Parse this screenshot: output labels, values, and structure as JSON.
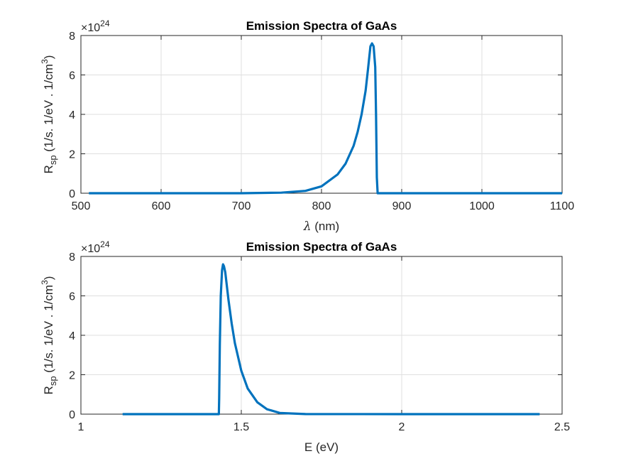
{
  "chart_data": [
    {
      "type": "line",
      "title": "Emission Spectra of GaAs",
      "xlabel": "λ (nm)",
      "xlabel_parts": {
        "symbol": "λ",
        "unit": " (nm)"
      },
      "ylabel": "R_sp (1/s. 1/eV . 1/cm^3)",
      "ylabel_parts": {
        "main": "R",
        "sub": "sp",
        "rest": "  (1/s. 1/eV . 1/cm",
        "sup": "3",
        "close": ")"
      },
      "y_exponent": {
        "base": "×10",
        "power": "24"
      },
      "xlim": [
        500,
        1100
      ],
      "ylim": [
        0,
        8
      ],
      "xticks": [
        500,
        600,
        700,
        800,
        900,
        1000,
        1100
      ],
      "yticks": [
        0,
        2,
        4,
        6,
        8
      ],
      "grid": true,
      "color": "#0072BD",
      "series": [
        {
          "x": [
            510,
            700,
            750,
            780,
            800,
            820,
            830,
            840,
            845,
            850,
            855,
            858,
            861,
            863,
            865,
            867,
            868,
            869,
            870,
            875,
            900,
            1100
          ],
          "y": [
            0,
            0,
            0.03,
            0.12,
            0.35,
            0.95,
            1.5,
            2.4,
            3.1,
            4.0,
            5.2,
            6.3,
            7.45,
            7.6,
            7.45,
            6.4,
            4.0,
            0.8,
            0,
            0,
            0,
            0
          ]
        }
      ]
    },
    {
      "type": "line",
      "title": "Emission Spectra of GaAs",
      "xlabel": "E (eV)",
      "ylabel": "R_sp (1/s. 1/eV . 1/cm^3)",
      "ylabel_parts": {
        "main": "R",
        "sub": "sp",
        "rest": "  (1/s. 1/eV . 1/cm",
        "sup": "3",
        "close": ")"
      },
      "y_exponent": {
        "base": "×10",
        "power": "24"
      },
      "xlim": [
        1,
        2.5
      ],
      "ylim": [
        0,
        8
      ],
      "xticks": [
        1,
        1.5,
        2,
        2.5
      ],
      "yticks": [
        0,
        2,
        4,
        6,
        8
      ],
      "grid": true,
      "color": "#0072BD",
      "series": [
        {
          "x": [
            1.13,
            1.43,
            1.431,
            1.433,
            1.436,
            1.44,
            1.443,
            1.446,
            1.45,
            1.455,
            1.46,
            1.47,
            1.48,
            1.5,
            1.52,
            1.55,
            1.58,
            1.62,
            1.7,
            2.0,
            2.43
          ],
          "y": [
            0,
            0,
            0.8,
            3.5,
            6.0,
            7.3,
            7.6,
            7.5,
            7.2,
            6.5,
            5.8,
            4.6,
            3.6,
            2.2,
            1.3,
            0.6,
            0.25,
            0.06,
            0.005,
            0,
            0
          ]
        }
      ]
    }
  ]
}
